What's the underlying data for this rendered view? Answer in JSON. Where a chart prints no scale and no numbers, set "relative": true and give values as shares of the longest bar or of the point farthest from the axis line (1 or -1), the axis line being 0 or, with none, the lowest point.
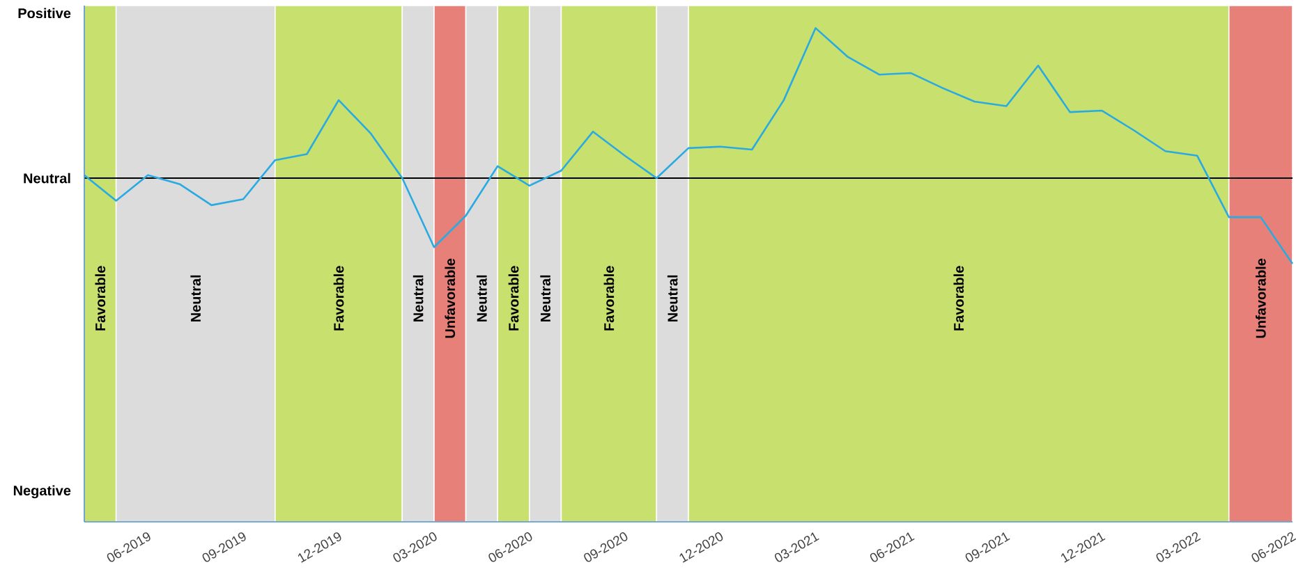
{
  "chart_data": {
    "type": "line",
    "x": [
      "2019-04",
      "2019-05",
      "2019-06",
      "2019-07",
      "2019-08",
      "2019-09",
      "2019-10",
      "2019-11",
      "2019-12",
      "2020-01",
      "2020-02",
      "2020-03",
      "2020-04",
      "2020-05",
      "2020-06",
      "2020-07",
      "2020-08",
      "2020-09",
      "2020-10",
      "2020-11",
      "2020-12",
      "2021-01",
      "2021-02",
      "2021-03",
      "2021-04",
      "2021-05",
      "2021-06",
      "2021-07",
      "2021-08",
      "2021-09",
      "2021-10",
      "2021-11",
      "2021-12",
      "2022-01",
      "2022-02",
      "2022-03",
      "2022-04",
      "2022-05",
      "2022-06"
    ],
    "series": [
      {
        "color": "#29aae1",
        "values": [
          0.02,
          -0.15,
          0.02,
          -0.04,
          -0.18,
          -0.14,
          0.12,
          0.16,
          0.52,
          0.3,
          0.0,
          -0.46,
          -0.25,
          0.08,
          -0.05,
          0.05,
          0.31,
          0.15,
          0.0,
          0.2,
          0.21,
          0.19,
          0.52,
          1,
          0.81,
          0.69,
          0.7,
          0.6,
          0.51,
          0.48,
          0.75,
          0.44,
          0.45,
          0.32,
          0.18,
          0.15,
          -0.26,
          -0.26,
          -0.57
        ]
      }
    ],
    "relative": true,
    "annotations": [
      "Positive",
      "Neutral",
      "Negative"
    ],
    "xlim": [
      "2019-04",
      "2022-06"
    ],
    "xticks": [
      {
        "value": "2019-06",
        "label": "06-2019"
      },
      {
        "value": "2019-09",
        "label": "09-2019"
      },
      {
        "value": "2019-12",
        "label": "12-2019"
      },
      {
        "value": "2020-03",
        "label": "03-2020"
      },
      {
        "value": "2020-06",
        "label": "06-2020"
      },
      {
        "value": "2020-09",
        "label": "09-2020"
      },
      {
        "value": "2020-12",
        "label": "12-2020"
      },
      {
        "value": "2021-03",
        "label": "03-2021"
      },
      {
        "value": "2021-06",
        "label": "06-2021"
      },
      {
        "value": "2021-09",
        "label": "09-2021"
      },
      {
        "value": "2021-12",
        "label": "12-2021"
      },
      {
        "value": "2022-03",
        "label": "03-2022"
      },
      {
        "value": "2022-06",
        "label": "06-2022"
      }
    ],
    "ref_lines": [
      {
        "axis": "y",
        "value": 0,
        "color": "#000000"
      }
    ],
    "bands": [
      {
        "axis": "x",
        "from": "2019-04",
        "to": "2019-05",
        "label": "Favorable",
        "color": "#c8e06e"
      },
      {
        "axis": "x",
        "from": "2019-05",
        "to": "2019-10",
        "label": "Neutral",
        "color": "#dcdcdc"
      },
      {
        "axis": "x",
        "from": "2019-10",
        "to": "2020-02",
        "label": "Favorable",
        "color": "#c8e06e"
      },
      {
        "axis": "x",
        "from": "2020-02",
        "to": "2020-03",
        "label": "Neutral",
        "color": "#dcdcdc"
      },
      {
        "axis": "x",
        "from": "2020-03",
        "to": "2020-04",
        "label": "Unfavorable",
        "color": "#e8807a"
      },
      {
        "axis": "x",
        "from": "2020-04",
        "to": "2020-05",
        "label": "Neutral",
        "color": "#dcdcdc"
      },
      {
        "axis": "x",
        "from": "2020-05",
        "to": "2020-06",
        "label": "Favorable",
        "color": "#c8e06e"
      },
      {
        "axis": "x",
        "from": "2020-06",
        "to": "2020-07",
        "label": "Neutral",
        "color": "#dcdcdc"
      },
      {
        "axis": "x",
        "from": "2020-07",
        "to": "2020-10",
        "label": "Favorable",
        "color": "#c8e06e"
      },
      {
        "axis": "x",
        "from": "2020-10",
        "to": "2020-11",
        "label": "Neutral",
        "color": "#dcdcdc"
      },
      {
        "axis": "x",
        "from": "2020-11",
        "to": "2022-04",
        "label": "Favorable",
        "color": "#c8e06e"
      },
      {
        "axis": "x",
        "from": "2022-04",
        "to": "2022-06",
        "label": "Unfavorable",
        "color": "#e8807a"
      }
    ],
    "grid": false,
    "marker": "none",
    "line_style": "solid"
  }
}
